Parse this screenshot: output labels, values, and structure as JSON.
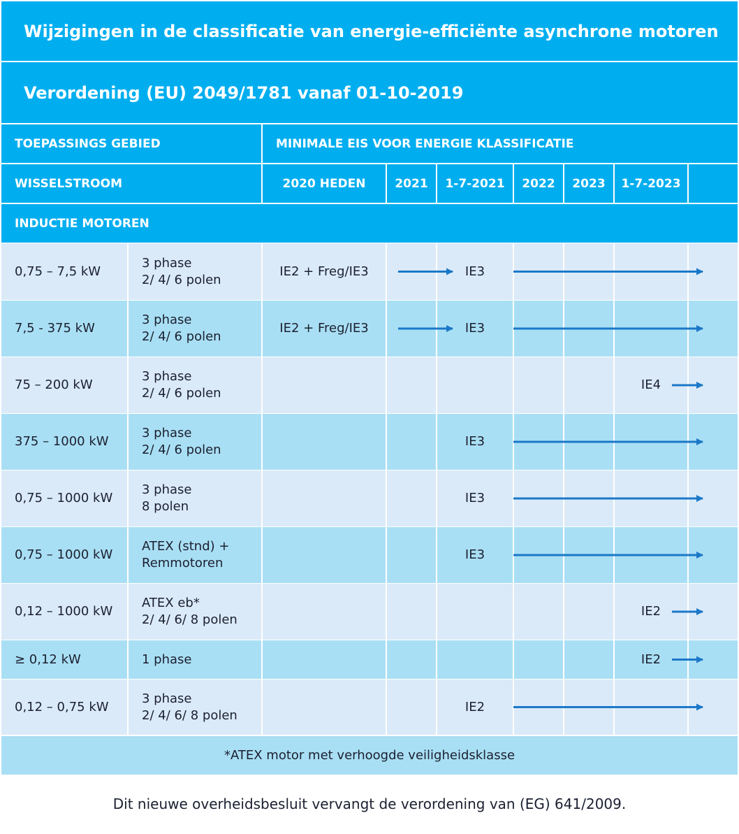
{
  "title": "Wijzigingen in de classificatie van energie-efficiënte asynchrone motoren",
  "subtitle": "Verordening (EU) 2049/1781 vanaf 01-10-2019",
  "header": {
    "scope": "TOEPASSINGS GEBIED",
    "requirement": "MINIMALE EIS VOOR ENERGIE KLASSIFICATIE"
  },
  "subheader": {
    "label": "WISSELSTROOM",
    "columns": [
      "2020 HEDEN",
      "2021",
      "1-7-2021",
      "2022",
      "2023",
      "1-7-2023"
    ]
  },
  "section": "INDUCTIE MOTOREN",
  "rows": [
    {
      "power": "0,75 – 7,5 kW",
      "type": [
        "3 phase",
        "2/ 4/ 6 polen"
      ],
      "classes": [
        "IE2 + Freg/IE3",
        null,
        "IE3",
        null,
        null,
        null
      ]
    },
    {
      "power": "7,5 - 375 kW",
      "type": [
        "3 phase",
        "2/ 4/ 6 polen"
      ],
      "classes": [
        "IE2 + Freg/IE3",
        null,
        "IE3",
        null,
        null,
        null
      ]
    },
    {
      "power": "75 – 200 kW",
      "type": [
        "3 phase",
        "2/ 4/ 6 polen"
      ],
      "classes": [
        null,
        null,
        null,
        null,
        null,
        "IE4"
      ]
    },
    {
      "power": "375 – 1000 kW",
      "type": [
        "3 phase",
        "2/ 4/ 6 polen"
      ],
      "classes": [
        null,
        null,
        "IE3",
        null,
        null,
        null
      ]
    },
    {
      "power": "0,75 – 1000 kW",
      "type": [
        "3 phase",
        "8 polen"
      ],
      "classes": [
        null,
        null,
        "IE3",
        null,
        null,
        null
      ]
    },
    {
      "power": "0,75 – 1000 kW",
      "type": [
        "ATEX (stnd) +",
        "Remmotoren"
      ],
      "classes": [
        null,
        null,
        "IE3",
        null,
        null,
        null
      ]
    },
    {
      "power": "0,12 – 1000 kW",
      "type": [
        "ATEX eb*",
        "2/ 4/ 6/ 8 polen"
      ],
      "classes": [
        null,
        null,
        null,
        null,
        null,
        "IE2"
      ]
    },
    {
      "power": "≥ 0,12 kW",
      "type": [
        "1 phase"
      ],
      "classes": [
        null,
        null,
        null,
        null,
        null,
        "IE2"
      ]
    },
    {
      "power": "0,12 – 0,75 kW",
      "type": [
        "3 phase",
        "2/ 4/ 6/ 8 polen"
      ],
      "classes": [
        null,
        null,
        "IE2",
        null,
        null,
        null
      ]
    }
  ],
  "footnote": "*ATEX motor met verhoogde veiligheidsklasse",
  "caption": "Dit nieuwe overheidsbesluit vervangt de verordening van (EG) 641/2009."
}
